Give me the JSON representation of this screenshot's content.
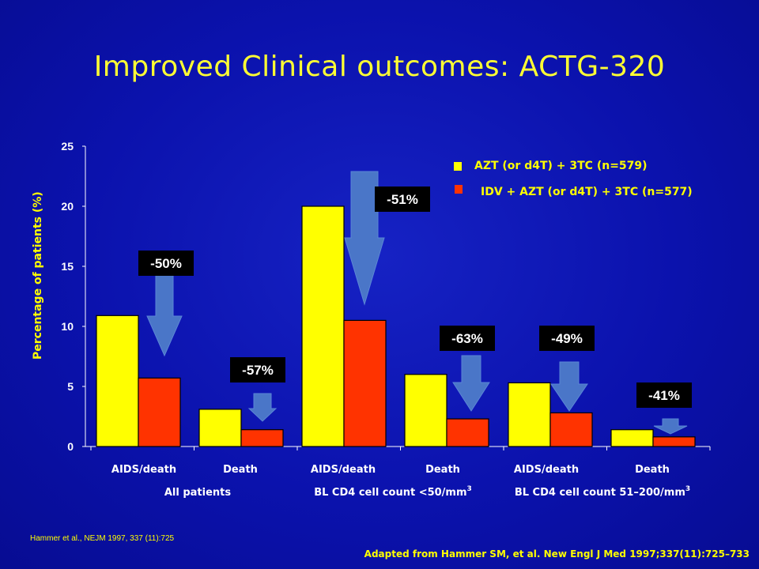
{
  "slide": {
    "title": "Improved Clinical outcomes: ACTG-320",
    "footnote": "Hammer et al., NEJM 1997, 337 (11):725",
    "source": "Adapted from Hammer SM, et al. New Engl J Med 1997;337(11):725–733"
  },
  "chart_data": {
    "type": "bar",
    "ylabel": "Percentage of patients  (%)",
    "ylim": [
      0,
      25
    ],
    "yticks": [
      "0",
      "5",
      "10",
      "15",
      "20",
      "25"
    ],
    "categories": [
      "AIDS/death",
      "Death",
      "AIDS/death",
      "Death",
      "AIDS/death",
      "Death"
    ],
    "groups": [
      {
        "label": "All patients",
        "sup": ""
      },
      {
        "label": "BL CD4 cell count <50/mm",
        "sup": "3"
      },
      {
        "label": "BL CD4 cell count 51–200/mm",
        "sup": "3"
      }
    ],
    "series": [
      {
        "name": "AZT (or d4T) + 3TC (n=579)",
        "color": "#ffff00",
        "values": [
          10.9,
          3.1,
          20.0,
          6.0,
          5.3,
          1.4
        ]
      },
      {
        "name": "IDV + AZT (or d4T) + 3TC (n=577)",
        "color": "#ff3300",
        "values": [
          5.7,
          1.4,
          10.5,
          2.3,
          2.8,
          0.8
        ]
      }
    ],
    "annotations": [
      "-50%",
      "-57%",
      "-51%",
      "-63%",
      "-49%",
      "-41%"
    ],
    "legend_position": "top-right",
    "grid": false
  }
}
